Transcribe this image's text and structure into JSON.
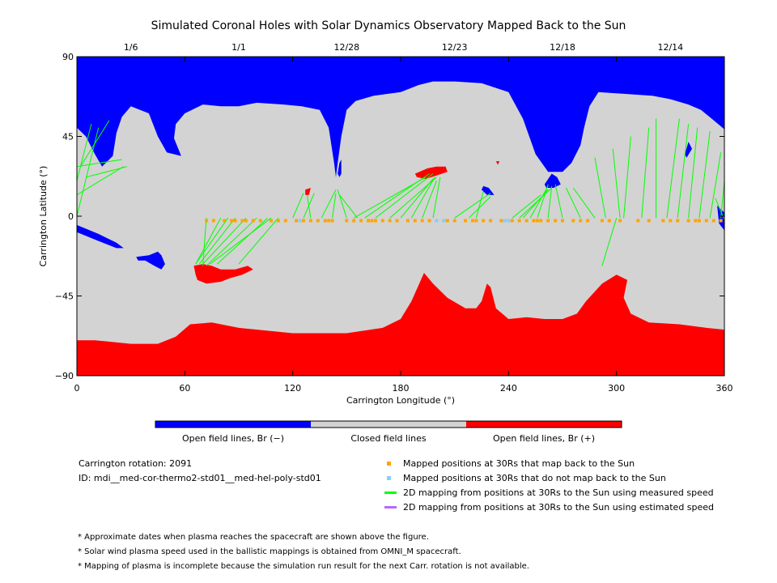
{
  "chart_data": {
    "type": "map",
    "title": "Simulated Coronal Holes with Solar Dynamics Observatory Mapped Back to the Sun",
    "xlabel": "Carrington Longitude (°)",
    "ylabel": "Carrington Latitude (°)",
    "xlim": [
      0,
      360
    ],
    "ylim": [
      -90,
      90
    ],
    "x_ticks": [
      "0",
      "60",
      "120",
      "180",
      "240",
      "300",
      "360"
    ],
    "y_ticks": [
      "90",
      "45",
      "0",
      "−45",
      "−90"
    ],
    "top_dates": [
      {
        "label": "1/6",
        "lon": 30
      },
      {
        "label": "1/1",
        "lon": 90
      },
      {
        "label": "12/28",
        "lon": 150
      },
      {
        "label": "12/23",
        "lon": 210
      },
      {
        "label": "12/18",
        "lon": 270
      },
      {
        "label": "12/14",
        "lon": 330
      }
    ],
    "colorbar": [
      {
        "label": "Open field lines, Br (−)",
        "color": "#0000ff"
      },
      {
        "label": "Closed field lines",
        "color": "#d3d3d3"
      },
      {
        "label": "Open field lines, Br (+)",
        "color": "#ff0000"
      }
    ],
    "info": {
      "rotation": "Carrington rotation: 2091",
      "id": "ID: mdi__med-cor-thermo2-std01__med-hel-poly-std01"
    },
    "legend": [
      {
        "label": "Mapped positions at 30Rs that map back to the Sun",
        "kind": "square",
        "color": "#ffa500"
      },
      {
        "label": "Mapped positions at 30Rs that do not map back to the Sun",
        "kind": "square",
        "color": "#87cefa"
      },
      {
        "label": "2D mapping from positions at 30Rs to the Sun using measured speed",
        "kind": "line",
        "color": "#00ff00"
      },
      {
        "label": "2D mapping from positions at 30Rs to the Sun using estimated speed",
        "kind": "line",
        "color": "#b469ff"
      }
    ],
    "footnotes": [
      "* Approximate dates when plasma reaches the spacecraft are shown above the figure.",
      "* Solar wind plasma speed used in the ballistic mappings is obtained from OMNI_M spacecraft.",
      "* Mapping of plasma is incomplete because the simulation run result for the next Carr. rotation is not available."
    ],
    "colors": {
      "negative": "#0000ff",
      "closed": "#d3d3d3",
      "positive": "#ff0000",
      "mapped": "#ffa500",
      "unmapped": "#87cefa",
      "measured": "#00ff00"
    },
    "coronal_holes": {
      "north_negative": [
        [
          0,
          90
        ],
        [
          360,
          90
        ],
        [
          360,
          49
        ],
        [
          353,
          55
        ],
        [
          347,
          60
        ],
        [
          340,
          63
        ],
        [
          330,
          66
        ],
        [
          320,
          68
        ],
        [
          305,
          69
        ],
        [
          290,
          70
        ],
        [
          285,
          62
        ],
        [
          282,
          50
        ],
        [
          280,
          40
        ],
        [
          275,
          30
        ],
        [
          270,
          25
        ],
        [
          262,
          25
        ],
        [
          255,
          35
        ],
        [
          248,
          55
        ],
        [
          240,
          70
        ],
        [
          225,
          75
        ],
        [
          210,
          76
        ],
        [
          198,
          76
        ],
        [
          190,
          74
        ],
        [
          180,
          70
        ],
        [
          165,
          68
        ],
        [
          155,
          65
        ],
        [
          150,
          60
        ],
        [
          147,
          45
        ],
        [
          145,
          30
        ],
        [
          144,
          22
        ],
        [
          143,
          30
        ],
        [
          140,
          50
        ],
        [
          135,
          60
        ],
        [
          125,
          62
        ],
        [
          115,
          63
        ],
        [
          100,
          64
        ],
        [
          90,
          62
        ],
        [
          80,
          62
        ],
        [
          70,
          63
        ],
        [
          60,
          58
        ],
        [
          55,
          52
        ],
        [
          54,
          44
        ],
        [
          58,
          34
        ],
        [
          50,
          36
        ],
        [
          45,
          45
        ],
        [
          40,
          58
        ],
        [
          30,
          62
        ],
        [
          25,
          56
        ],
        [
          22,
          47
        ],
        [
          20,
          34
        ],
        [
          14,
          28
        ],
        [
          10,
          35
        ],
        [
          5,
          45
        ],
        [
          0,
          50
        ]
      ],
      "south_positive": [
        [
          0,
          -70
        ],
        [
          10,
          -70
        ],
        [
          20,
          -71
        ],
        [
          30,
          -72
        ],
        [
          45,
          -72
        ],
        [
          55,
          -68
        ],
        [
          63,
          -61
        ],
        [
          75,
          -60
        ],
        [
          90,
          -63
        ],
        [
          120,
          -66
        ],
        [
          150,
          -66
        ],
        [
          170,
          -63
        ],
        [
          180,
          -58
        ],
        [
          186,
          -48
        ],
        [
          193,
          -32
        ],
        [
          198,
          -38
        ],
        [
          206,
          -46
        ],
        [
          216,
          -52
        ],
        [
          222,
          -52
        ],
        [
          225,
          -48
        ],
        [
          228,
          -38
        ],
        [
          230,
          -40
        ],
        [
          233,
          -52
        ],
        [
          240,
          -58
        ],
        [
          250,
          -57
        ],
        [
          260,
          -58
        ],
        [
          270,
          -58
        ],
        [
          278,
          -55
        ],
        [
          283,
          -48
        ],
        [
          292,
          -38
        ],
        [
          300,
          -33
        ],
        [
          306,
          -36
        ],
        [
          304,
          -46
        ],
        [
          308,
          -55
        ],
        [
          318,
          -60
        ],
        [
          335,
          -61
        ],
        [
          350,
          -63
        ],
        [
          360,
          -64
        ],
        [
          360,
          -90
        ],
        [
          0,
          -90
        ]
      ],
      "patches_negative": [
        [
          [
            33,
            -23
          ],
          [
            40,
            -22
          ],
          [
            45,
            -20
          ],
          [
            47,
            -22
          ],
          [
            49,
            -27
          ],
          [
            47,
            -30
          ],
          [
            43,
            -28
          ],
          [
            38,
            -25
          ],
          [
            34,
            -25
          ]
        ],
        [
          [
            0,
            -5
          ],
          [
            12,
            -10
          ],
          [
            22,
            -15
          ],
          [
            26,
            -18
          ],
          [
            22,
            -18
          ],
          [
            12,
            -14
          ],
          [
            0,
            -9
          ]
        ],
        [
          [
            145,
            24
          ],
          [
            146,
            30
          ],
          [
            147,
            32
          ],
          [
            147,
            24
          ],
          [
            146,
            22
          ]
        ],
        [
          [
            226,
            17
          ],
          [
            229,
            16
          ],
          [
            232,
            12
          ],
          [
            228,
            12
          ],
          [
            225,
            15
          ]
        ],
        [
          [
            260,
            18
          ],
          [
            264,
            24
          ],
          [
            267,
            22
          ],
          [
            269,
            18
          ],
          [
            265,
            16
          ],
          [
            261,
            16
          ]
        ],
        [
          [
            338,
            35
          ],
          [
            340,
            42
          ],
          [
            342,
            38
          ],
          [
            339,
            33
          ]
        ],
        [
          [
            356,
            6
          ],
          [
            360,
            2
          ],
          [
            360,
            -8
          ],
          [
            357,
            -4
          ]
        ]
      ],
      "patches_positive": [
        [
          [
            65,
            -28
          ],
          [
            70,
            -27
          ],
          [
            75,
            -28
          ],
          [
            80,
            -30
          ],
          [
            88,
            -30
          ],
          [
            95,
            -28
          ],
          [
            98,
            -30
          ],
          [
            92,
            -33
          ],
          [
            85,
            -35
          ],
          [
            80,
            -37
          ],
          [
            72,
            -38
          ],
          [
            67,
            -36
          ],
          [
            66,
            -33
          ]
        ],
        [
          [
            188,
            24
          ],
          [
            195,
            27
          ],
          [
            200,
            28
          ],
          [
            205,
            28
          ],
          [
            206,
            25
          ],
          [
            200,
            23
          ],
          [
            194,
            21
          ],
          [
            189,
            22
          ]
        ],
        [
          [
            127,
            15
          ],
          [
            130,
            16
          ],
          [
            129,
            12
          ],
          [
            127,
            12
          ]
        ],
        [
          [
            233,
            31
          ],
          [
            234,
            29
          ],
          [
            235,
            31
          ]
        ]
      ]
    },
    "mapped_points_lon": [
      72,
      76,
      82,
      86,
      88,
      92,
      94,
      98,
      102,
      108,
      112,
      116,
      122,
      126,
      130,
      134,
      138,
      140,
      142,
      150,
      154,
      158,
      162,
      164,
      166,
      170,
      174,
      178,
      184,
      188,
      192,
      196,
      204,
      206,
      210,
      216,
      220,
      222,
      226,
      230,
      236,
      242,
      246,
      250,
      254,
      256,
      258,
      262,
      266,
      270,
      276,
      280,
      284,
      292,
      296,
      302,
      312,
      318,
      326,
      330,
      334,
      340,
      344,
      346,
      350,
      354,
      358
    ],
    "unmapped_points_lon": [
      124,
      200,
      204,
      238,
      240
    ],
    "mapping_lines": [
      [
        [
          0,
          0
        ],
        [
          12,
          50
        ]
      ],
      [
        [
          0,
          20
        ],
        [
          8,
          52
        ]
      ],
      [
        [
          0,
          28
        ],
        [
          25,
          32
        ]
      ],
      [
        [
          5,
          22
        ],
        [
          28,
          28
        ]
      ],
      [
        [
          0,
          12
        ],
        [
          26,
          28
        ]
      ],
      [
        [
          2,
          28
        ],
        [
          18,
          54
        ]
      ],
      [
        [
          68,
          -27
        ],
        [
          88,
          -1
        ]
      ],
      [
        [
          70,
          -27
        ],
        [
          94,
          -1
        ]
      ],
      [
        [
          72,
          -28
        ],
        [
          100,
          -1
        ]
      ],
      [
        [
          74,
          -27
        ],
        [
          108,
          -1
        ]
      ],
      [
        [
          66,
          -27
        ],
        [
          80,
          -1
        ]
      ],
      [
        [
          70,
          -28
        ],
        [
          72,
          -1
        ]
      ],
      [
        [
          90,
          -27
        ],
        [
          112,
          -1
        ]
      ],
      [
        [
          66,
          -27
        ],
        [
          84,
          -1
        ]
      ],
      [
        [
          78,
          -27
        ],
        [
          106,
          -1
        ]
      ],
      [
        [
          126,
          13
        ],
        [
          120,
          -1
        ]
      ],
      [
        [
          128,
          12
        ],
        [
          130,
          -1
        ]
      ],
      [
        [
          144,
          15
        ],
        [
          136,
          -1
        ]
      ],
      [
        [
          144,
          13
        ],
        [
          142,
          -1
        ]
      ],
      [
        [
          145,
          15
        ],
        [
          150,
          -1
        ]
      ],
      [
        [
          146,
          12
        ],
        [
          156,
          -1
        ]
      ],
      [
        [
          132,
          13
        ],
        [
          126,
          -1
        ]
      ],
      [
        [
          196,
          24
        ],
        [
          160,
          -1
        ]
      ],
      [
        [
          198,
          24
        ],
        [
          166,
          -1
        ]
      ],
      [
        [
          200,
          22
        ],
        [
          174,
          -1
        ]
      ],
      [
        [
          198,
          21
        ],
        [
          180,
          -1
        ]
      ],
      [
        [
          199,
          22
        ],
        [
          186,
          -1
        ]
      ],
      [
        [
          200,
          20
        ],
        [
          192,
          -1
        ]
      ],
      [
        [
          202,
          22
        ],
        [
          198,
          -1
        ]
      ],
      [
        [
          194,
          22
        ],
        [
          154,
          -1
        ]
      ],
      [
        [
          230,
          13
        ],
        [
          210,
          -1
        ]
      ],
      [
        [
          230,
          11
        ],
        [
          218,
          -1
        ]
      ],
      [
        [
          226,
          14
        ],
        [
          222,
          -1
        ]
      ],
      [
        [
          258,
          12
        ],
        [
          242,
          -1
        ]
      ],
      [
        [
          262,
          15
        ],
        [
          248,
          -1
        ]
      ],
      [
        [
          262,
          17
        ],
        [
          252,
          -1
        ]
      ],
      [
        [
          262,
          18
        ],
        [
          256,
          -1
        ]
      ],
      [
        [
          264,
          17
        ],
        [
          262,
          -1
        ]
      ],
      [
        [
          266,
          18
        ],
        [
          270,
          -1
        ]
      ],
      [
        [
          272,
          16
        ],
        [
          280,
          -1
        ]
      ],
      [
        [
          276,
          16
        ],
        [
          288,
          -1
        ]
      ],
      [
        [
          264,
          16
        ],
        [
          246,
          -1
        ]
      ],
      [
        [
          288,
          33
        ],
        [
          294,
          -1
        ]
      ],
      [
        [
          298,
          38
        ],
        [
          302,
          -1
        ]
      ],
      [
        [
          308,
          45
        ],
        [
          304,
          -1
        ]
      ],
      [
        [
          318,
          50
        ],
        [
          314,
          -1
        ]
      ],
      [
        [
          322,
          55
        ],
        [
          322,
          -1
        ]
      ],
      [
        [
          335,
          55
        ],
        [
          328,
          -1
        ]
      ],
      [
        [
          340,
          52
        ],
        [
          334,
          -1
        ]
      ],
      [
        [
          345,
          50
        ],
        [
          340,
          -1
        ]
      ],
      [
        [
          352,
          48
        ],
        [
          346,
          -1
        ]
      ],
      [
        [
          358,
          36
        ],
        [
          352,
          -1
        ]
      ],
      [
        [
          360,
          20
        ],
        [
          358,
          -1
        ]
      ],
      [
        [
          355,
          10
        ],
        [
          360,
          -2
        ]
      ],
      [
        [
          300,
          -1
        ],
        [
          292,
          -28
        ]
      ]
    ]
  }
}
